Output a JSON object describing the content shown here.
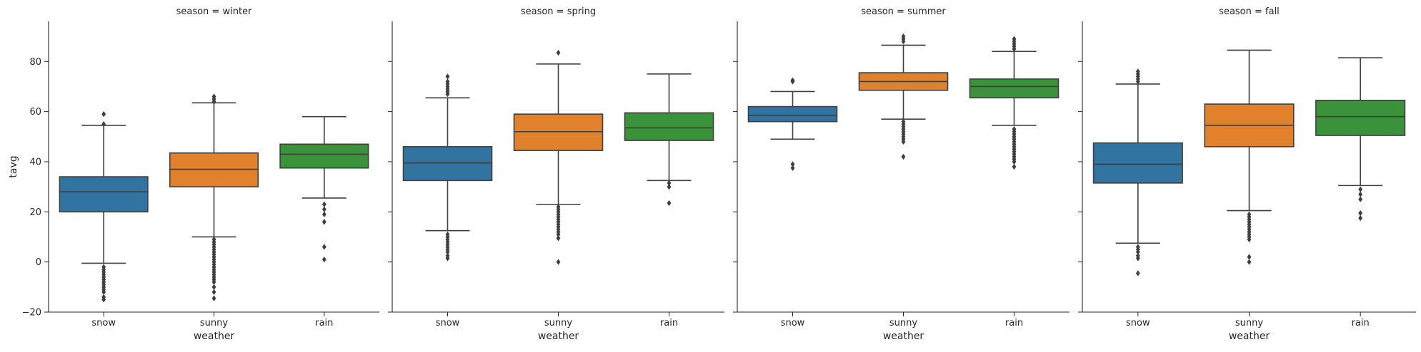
{
  "chart_data": {
    "type": "box",
    "layout": "facet-columns",
    "ylabel": "tavg",
    "xlabel": "weather",
    "ylim": [
      -20,
      96
    ],
    "yticks": [
      -20,
      0,
      20,
      40,
      60,
      80
    ],
    "categories": [
      "snow",
      "sunny",
      "rain"
    ],
    "colors": {
      "snow": "#3274a1",
      "sunny": "#e1812c",
      "rain": "#3a923a"
    },
    "facets": [
      {
        "title": "season = winter",
        "boxes": [
          {
            "category": "snow",
            "whislo": -0.5,
            "q1": 20,
            "med": 28,
            "q3": 34,
            "whishi": 54.5,
            "fliers": [
              -2,
              -3,
              -4,
              -5,
              -6,
              -7,
              -8,
              -9,
              -10,
              -11,
              -12,
              -14,
              -15,
              55,
              59
            ]
          },
          {
            "category": "sunny",
            "whislo": 10,
            "q1": 30,
            "med": 37,
            "q3": 43.5,
            "whishi": 63.5,
            "fliers": [
              -14.5,
              -12,
              -10,
              -8,
              -7,
              -6,
              -5,
              -4,
              -3,
              -2,
              -1,
              0,
              1,
              2,
              3,
              4,
              5,
              6,
              7,
              8,
              9,
              64,
              65,
              66
            ]
          },
          {
            "category": "rain",
            "whislo": 25.5,
            "q1": 37.5,
            "med": 43,
            "q3": 47,
            "whishi": 58,
            "fliers": [
              1,
              6,
              16,
              19,
              21,
              23
            ]
          }
        ]
      },
      {
        "title": "season = spring",
        "boxes": [
          {
            "category": "snow",
            "whislo": 12.5,
            "q1": 32.5,
            "med": 39.5,
            "q3": 46,
            "whishi": 65.5,
            "fliers": [
              1.5,
              2.5,
              4,
              5,
              6,
              7,
              8,
              9,
              10,
              11,
              67,
              68,
              69,
              70,
              71,
              72,
              74
            ]
          },
          {
            "category": "sunny",
            "whislo": 23,
            "q1": 44.5,
            "med": 52,
            "q3": 59,
            "whishi": 79,
            "fliers": [
              0,
              9.5,
              11,
              12,
              13,
              14,
              15,
              16,
              17,
              18,
              19,
              20,
              21,
              22,
              83.5
            ]
          },
          {
            "category": "rain",
            "whislo": 32.5,
            "q1": 48.5,
            "med": 53.5,
            "q3": 59.5,
            "whishi": 75,
            "fliers": [
              23.5,
              30,
              31.5
            ]
          }
        ]
      },
      {
        "title": "season = summer",
        "boxes": [
          {
            "category": "snow",
            "whislo": 49,
            "q1": 56,
            "med": 58.5,
            "q3": 62,
            "whishi": 68,
            "fliers": [
              37.5,
              39,
              72,
              72.5
            ]
          },
          {
            "category": "sunny",
            "whislo": 57,
            "q1": 68.5,
            "med": 72,
            "q3": 75.5,
            "whishi": 86.5,
            "fliers": [
              42,
              48,
              49,
              50,
              51,
              52,
              53,
              54,
              55,
              56,
              88,
              89,
              90
            ]
          },
          {
            "category": "rain",
            "whislo": 54.5,
            "q1": 65.5,
            "med": 70,
            "q3": 73,
            "whishi": 84,
            "fliers": [
              38,
              40,
              41,
              42,
              43,
              44,
              45,
              46,
              47,
              48,
              49,
              50,
              51,
              52,
              53,
              85,
              86,
              87,
              88,
              89
            ]
          }
        ]
      },
      {
        "title": "season = fall",
        "boxes": [
          {
            "category": "snow",
            "whislo": 7.5,
            "q1": 31.5,
            "med": 39,
            "q3": 47.5,
            "whishi": 71,
            "fliers": [
              -4.5,
              1.5,
              2.5,
              4,
              5,
              6,
              72,
              73,
              74,
              75,
              76
            ]
          },
          {
            "category": "sunny",
            "whislo": 20.5,
            "q1": 46,
            "med": 54.5,
            "q3": 63,
            "whishi": 84.5,
            "fliers": [
              0,
              2,
              9,
              10,
              11,
              12,
              13,
              14,
              15,
              16,
              17,
              18,
              19
            ]
          },
          {
            "category": "rain",
            "whislo": 30.5,
            "q1": 50.5,
            "med": 58,
            "q3": 64.5,
            "whishi": 81.5,
            "fliers": [
              17.5,
              19.5,
              25,
              27,
              29
            ]
          }
        ]
      }
    ]
  }
}
